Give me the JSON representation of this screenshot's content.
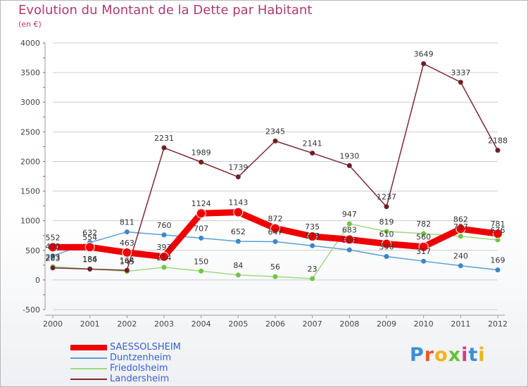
{
  "title": "Evolution du Montant de la Dette par Habitant",
  "subtitle": "(en €)",
  "logo": {
    "text": "Proxiti",
    "colors": [
      "#3a8fd8",
      "#e8592c",
      "#f2b21b",
      "#6bbf3a",
      "#d63b86",
      "#3a8fd8",
      "#f2b21b"
    ]
  },
  "colors": {
    "title": "#b03a73",
    "axis": "#444444",
    "grid": "#cccccc",
    "legend_text": "#3b5fd0"
  },
  "chart_data": {
    "type": "line",
    "title": "Evolution du Montant de la Dette par Habitant",
    "subtitle": "(en €)",
    "x": [
      "2000",
      "2001",
      "2002",
      "2003",
      "2004",
      "2005",
      "2006",
      "2007",
      "2008",
      "2009",
      "2010",
      "2011",
      "2012"
    ],
    "ylim": [
      -500,
      4000
    ],
    "yticks": [
      -500,
      0,
      500,
      1000,
      1500,
      2000,
      2500,
      3000,
      3500,
      4000
    ],
    "legend_position": "bottom-left",
    "series": [
      {
        "name": "SAESSOLSHEIM",
        "color": "#ee0000",
        "marker": "#ee0000",
        "width": 9,
        "values": [
          552,
          554,
          463,
          393,
          1124,
          1143,
          872,
          735,
          683,
          610,
          560,
          862,
          781
        ]
      },
      {
        "name": "Duntzenheim",
        "color": "#5a9fd4",
        "marker": "#3d86c6",
        "width": 1.5,
        "values": [
          405,
          632,
          811,
          760,
          707,
          652,
          647,
          578,
          508,
          396,
          317,
          240,
          169
        ]
      },
      {
        "name": "Friedolsheim",
        "color": "#9fd884",
        "marker": "#72c542",
        "width": 1.5,
        "values": [
          223,
          186,
          145,
          214,
          150,
          84,
          56,
          23,
          947,
          819,
          782,
          737,
          676
        ]
      },
      {
        "name": "Landersheim",
        "color": "#7a2a33",
        "marker": "#6e1f28",
        "width": 1.5,
        "values": [
          203,
          184,
          164,
          2231,
          1989,
          1739,
          2345,
          2141,
          1930,
          1237,
          3649,
          3337,
          2188
        ]
      }
    ]
  }
}
